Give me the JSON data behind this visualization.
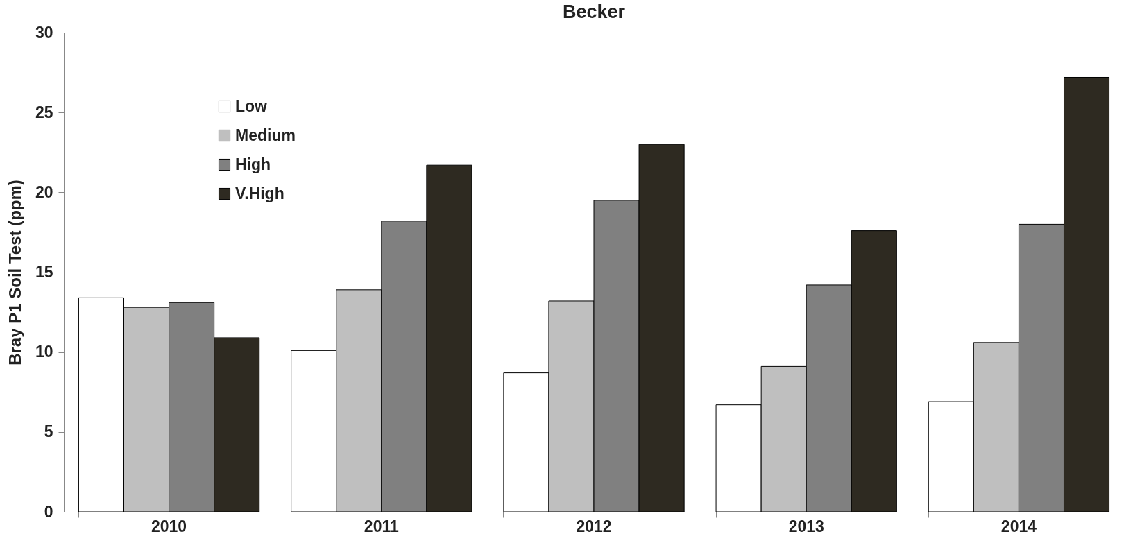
{
  "chart_data": {
    "type": "bar",
    "title": "Becker",
    "ylabel": "Bray  P1 Soil Test (ppm)",
    "categories": [
      "2010",
      "2011",
      "2012",
      "2013",
      "2014"
    ],
    "series": [
      {
        "name": "Low",
        "color": "#ffffff",
        "values": [
          13.4,
          10.1,
          8.7,
          6.7,
          6.9
        ]
      },
      {
        "name": "Medium",
        "color": "#bfbfbf",
        "values": [
          12.8,
          13.9,
          13.2,
          9.1,
          10.6
        ]
      },
      {
        "name": "High",
        "color": "#808080",
        "values": [
          13.1,
          18.2,
          19.5,
          14.2,
          18.0
        ]
      },
      {
        "name": "V.High",
        "color": "#2e2a21",
        "values": [
          10.9,
          21.7,
          23.0,
          17.6,
          27.2
        ]
      }
    ],
    "ylim": [
      0,
      30
    ],
    "yticks": [
      0,
      5,
      10,
      15,
      20,
      25,
      30
    ],
    "grid": false,
    "legend": "top left"
  }
}
